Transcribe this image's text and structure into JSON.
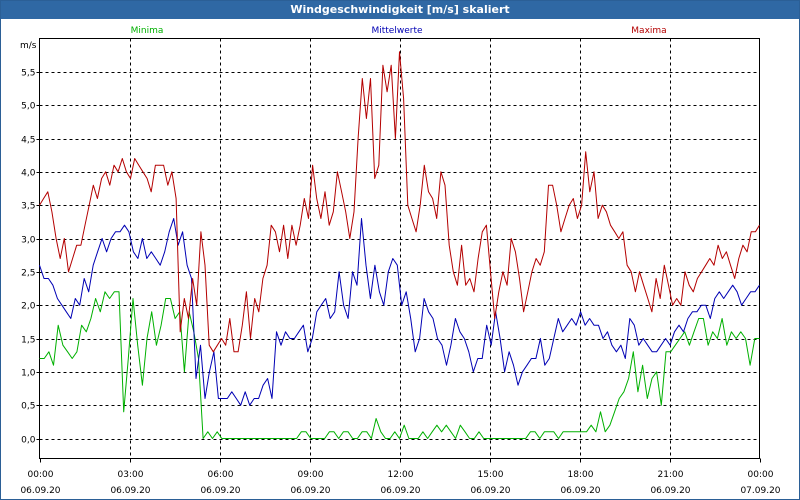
{
  "window": {
    "title": "Windgeschwindigkeit [m/s] skaliert"
  },
  "chart_data": {
    "type": "line",
    "title": "Windgeschwindigkeit [m/s] skaliert",
    "ylabel": "m/s",
    "ylim": [
      -0.3,
      6.0
    ],
    "xlim": [
      0,
      24
    ],
    "grid": true,
    "y_ticks": [
      "0,0",
      "0,5",
      "1,0",
      "1,5",
      "2,0",
      "2,5",
      "3,0",
      "3,5",
      "4,0",
      "4,5",
      "5,0",
      "5,5"
    ],
    "y_tick_values": [
      0,
      0.5,
      1,
      1.5,
      2,
      2.5,
      3,
      3.5,
      4,
      4.5,
      5,
      5.5
    ],
    "x_ticks": [
      {
        "time": "00:00",
        "date": "06.09.20",
        "hour": 0
      },
      {
        "time": "03:00",
        "date": "06.09.20",
        "hour": 3
      },
      {
        "time": "06:00",
        "date": "06.09.20",
        "hour": 6
      },
      {
        "time": "09:00",
        "date": "06.09.20",
        "hour": 9
      },
      {
        "time": "12:00",
        "date": "06.09.20",
        "hour": 12
      },
      {
        "time": "15:00",
        "date": "06.09.20",
        "hour": 15
      },
      {
        "time": "18:00",
        "date": "06.09.20",
        "hour": 18
      },
      {
        "time": "21:00",
        "date": "06.09.20",
        "hour": 21
      },
      {
        "time": "00:00",
        "date": "07.09.20",
        "hour": 24
      }
    ],
    "x_step_hours": 0.1667,
    "series": [
      {
        "name": "Minima",
        "color": "#00b000",
        "values": [
          1.2,
          1.2,
          1.3,
          1.1,
          1.7,
          1.4,
          1.3,
          1.2,
          1.3,
          1.7,
          1.6,
          1.8,
          2.1,
          1.9,
          2.2,
          2.1,
          2.2,
          2.2,
          0.4,
          1.2,
          2.1,
          1.4,
          0.8,
          1.5,
          1.9,
          1.4,
          1.7,
          2.1,
          2.1,
          1.8,
          1.9,
          1.0,
          1.9,
          1.6,
          1.2,
          0.0,
          0.1,
          0.0,
          0.1,
          0.0,
          0.0,
          0.0,
          0.0,
          0.0,
          0.0,
          0.0,
          0.0,
          0.0,
          0.0,
          0.0,
          0.0,
          0.0,
          0.0,
          0.0,
          0.0,
          0.0,
          0.1,
          0.1,
          0.0,
          0.0,
          0.0,
          0.0,
          0.1,
          0.1,
          0.0,
          0.1,
          0.1,
          0.0,
          0.0,
          0.1,
          0.1,
          0.0,
          0.3,
          0.1,
          0.0,
          0.0,
          0.1,
          0.0,
          0.2,
          0.0,
          0.0,
          0.0,
          0.1,
          0.0,
          0.1,
          0.2,
          0.1,
          0.2,
          0.1,
          0.0,
          0.2,
          0.1,
          0.0,
          0.0,
          0.1,
          0.0,
          0.0,
          0.0,
          0.0,
          0.0,
          0.0,
          0.0,
          0.0,
          0.0,
          0.0,
          0.1,
          0.1,
          0.0,
          0.1,
          0.1,
          0.1,
          0.0,
          0.1,
          0.1,
          0.1,
          0.1,
          0.1,
          0.1,
          0.2,
          0.1,
          0.4,
          0.1,
          0.2,
          0.4,
          0.6,
          0.7,
          0.9,
          1.3,
          0.7,
          1.1,
          0.6,
          0.9,
          1.0,
          0.5,
          1.3,
          1.3,
          1.4,
          1.5,
          1.6,
          1.4,
          1.6,
          1.8,
          1.8,
          1.4,
          1.6,
          1.5,
          1.8,
          1.4,
          1.6,
          1.5,
          1.6,
          1.5,
          1.1,
          1.5,
          1.5
        ]
      },
      {
        "name": "Mittelwerte",
        "color": "#0000b4",
        "values": [
          2.6,
          2.4,
          2.4,
          2.3,
          2.1,
          2.0,
          1.9,
          1.8,
          2.1,
          2.0,
          2.4,
          2.2,
          2.6,
          2.8,
          3.0,
          2.8,
          3.0,
          3.1,
          3.1,
          3.2,
          3.1,
          2.8,
          2.7,
          3.0,
          2.7,
          2.8,
          2.7,
          2.6,
          2.8,
          3.1,
          3.3,
          2.9,
          3.1,
          2.6,
          2.4,
          0.9,
          1.4,
          0.6,
          1.0,
          1.3,
          0.6,
          0.6,
          0.6,
          0.7,
          0.6,
          0.5,
          0.7,
          0.5,
          0.6,
          0.6,
          0.8,
          0.9,
          0.6,
          1.6,
          1.4,
          1.6,
          1.5,
          1.5,
          1.6,
          1.7,
          1.3,
          1.5,
          1.9,
          2.0,
          2.1,
          1.8,
          1.9,
          2.5,
          2.0,
          1.8,
          2.5,
          2.3,
          3.3,
          2.6,
          2.1,
          2.6,
          2.2,
          2.0,
          2.5,
          2.7,
          2.6,
          2.0,
          2.2,
          1.8,
          1.3,
          1.5,
          2.1,
          1.9,
          1.8,
          1.5,
          1.4,
          1.1,
          1.4,
          1.8,
          1.6,
          1.5,
          1.3,
          1.0,
          1.2,
          1.2,
          1.7,
          1.4,
          1.9,
          1.5,
          1.0,
          1.3,
          1.1,
          0.8,
          1.0,
          1.1,
          1.2,
          1.2,
          1.5,
          1.1,
          1.2,
          1.5,
          1.8,
          1.6,
          1.7,
          1.8,
          1.7,
          1.9,
          1.7,
          1.8,
          1.7,
          1.7,
          1.5,
          1.6,
          1.4,
          1.3,
          1.4,
          1.2,
          1.8,
          1.7,
          1.4,
          1.5,
          1.4,
          1.3,
          1.3,
          1.4,
          1.5,
          1.4,
          1.6,
          1.7,
          1.6,
          1.8,
          1.9,
          1.9,
          2.0,
          2.0,
          1.8,
          2.1,
          2.2,
          2.1,
          2.2,
          2.3,
          2.2,
          2.0,
          2.1,
          2.2,
          2.2,
          2.3
        ]
      },
      {
        "name": "Maxima",
        "color": "#b40000",
        "values": [
          3.5,
          3.6,
          3.7,
          3.4,
          3.0,
          2.7,
          3.0,
          2.5,
          2.7,
          2.9,
          2.9,
          3.2,
          3.5,
          3.8,
          3.6,
          3.9,
          4.0,
          3.8,
          4.1,
          4.0,
          4.2,
          4.0,
          3.9,
          4.2,
          4.1,
          4.0,
          3.9,
          3.7,
          4.1,
          4.1,
          4.1,
          3.8,
          4.0,
          3.6,
          1.6,
          2.1,
          1.8,
          2.4,
          2.0,
          3.1,
          2.6,
          1.4,
          1.3,
          1.4,
          1.5,
          1.4,
          1.8,
          1.3,
          1.3,
          1.7,
          2.2,
          1.5,
          2.1,
          1.9,
          2.4,
          2.6,
          3.2,
          3.1,
          2.8,
          3.2,
          2.7,
          3.2,
          2.9,
          3.2,
          3.6,
          3.3,
          4.1,
          3.6,
          3.3,
          3.7,
          3.2,
          3.4,
          4.0,
          3.7,
          3.4,
          3.0,
          3.4,
          4.5,
          5.4,
          4.8,
          5.4,
          3.9,
          4.1,
          5.6,
          5.2,
          5.6,
          4.5,
          5.8,
          5.1,
          3.5,
          3.3,
          3.1,
          3.5,
          4.1,
          3.7,
          3.6,
          3.3,
          4.0,
          3.8,
          2.9,
          2.5,
          2.3,
          2.9,
          2.3,
          2.4,
          2.2,
          2.7,
          3.1,
          3.2,
          2.5,
          1.8,
          2.2,
          2.5,
          2.3,
          3.0,
          2.8,
          2.4,
          1.9,
          2.2,
          2.5,
          2.7,
          2.6,
          2.8,
          3.8,
          3.8,
          3.5,
          3.1,
          3.3,
          3.5,
          3.6,
          3.3,
          3.5,
          4.3,
          3.7,
          4.0,
          3.3,
          3.5,
          3.4,
          3.2,
          3.1,
          3.0,
          3.1,
          2.6,
          2.5,
          2.2,
          2.5,
          2.3,
          2.1,
          1.9,
          2.4,
          2.1,
          2.6,
          2.3,
          2.0,
          2.1,
          2.0,
          2.5,
          2.3,
          2.2,
          2.4,
          2.5,
          2.6,
          2.7,
          2.6,
          2.9,
          2.7,
          2.8,
          2.6,
          2.4,
          2.7,
          2.9,
          2.8,
          3.1,
          3.1,
          3.2
        ]
      }
    ]
  }
}
